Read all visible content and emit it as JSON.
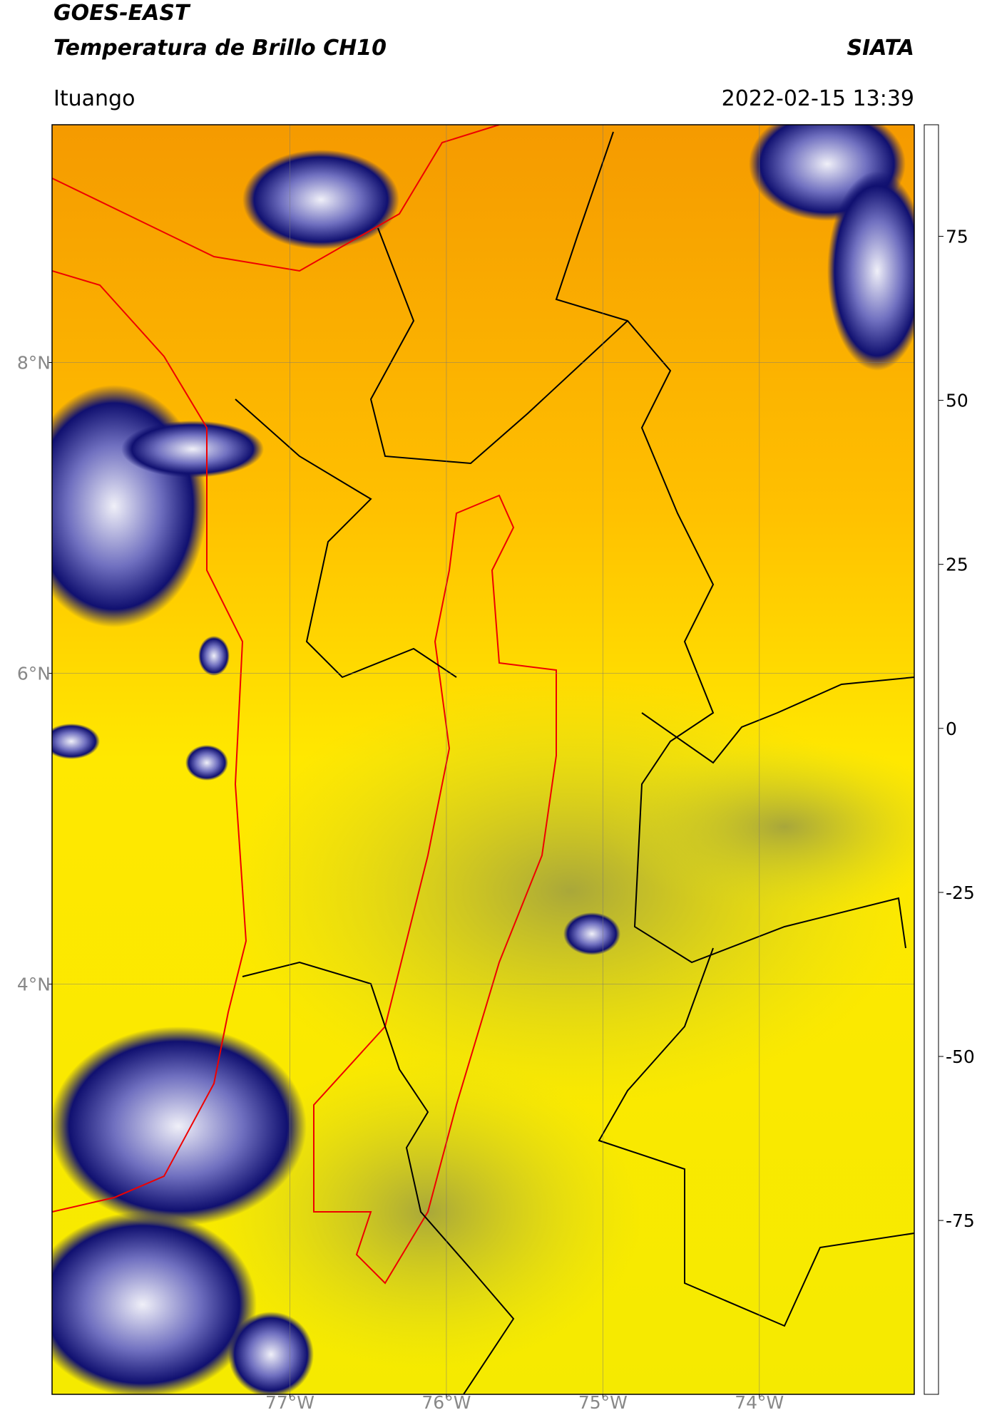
{
  "header": {
    "title": "GOES-EAST",
    "subtitle": "Temperatura de Brillo CH10",
    "source": "SIATA",
    "location": "Ituango",
    "datetime": "2022-02-15 13:39"
  },
  "map": {
    "xlim": [
      -78.52,
      -73.01
    ],
    "ylim": [
      1.36,
      9.53
    ],
    "xticks": [
      {
        "value": -77,
        "label": "77°W"
      },
      {
        "value": -76,
        "label": "76°W"
      },
      {
        "value": -75,
        "label": "75°W"
      },
      {
        "value": -74,
        "label": "74°W"
      }
    ],
    "yticks": [
      {
        "value": 8,
        "label": "8°N"
      },
      {
        "value": 6,
        "label": "6°N"
      },
      {
        "value": 4,
        "label": "4°N"
      }
    ],
    "grid": true
  },
  "colorbar": {
    "lim": [
      -101.5,
      92
    ],
    "ticks": [
      75,
      50,
      25,
      0,
      -25,
      -50,
      -75
    ],
    "colors": [
      {
        "value": -101.5,
        "color": "#ffffff"
      },
      {
        "value": -97,
        "color": "#ffffff"
      },
      {
        "value": -96.5,
        "color": "#00e5e5"
      },
      {
        "value": -85,
        "color": "#20b8a0"
      },
      {
        "value": -72,
        "color": "#2a8a3a"
      },
      {
        "value": -60,
        "color": "#7ab07a"
      },
      {
        "value": -52,
        "color": "#f0f5f0"
      },
      {
        "value": -45,
        "color": "#b0b0e0"
      },
      {
        "value": -35,
        "color": "#5050b0"
      },
      {
        "value": -28,
        "color": "#101070"
      },
      {
        "value": -23,
        "color": "#606050"
      },
      {
        "value": -17,
        "color": "#c8c830"
      },
      {
        "value": -10,
        "color": "#ffff00"
      },
      {
        "value": -3,
        "color": "#ffa000"
      },
      {
        "value": 3,
        "color": "#ff4000"
      },
      {
        "value": 8,
        "color": "#ff0000"
      },
      {
        "value": 8.5,
        "color": "#000000"
      },
      {
        "value": 92,
        "color": "#000000"
      }
    ]
  }
}
